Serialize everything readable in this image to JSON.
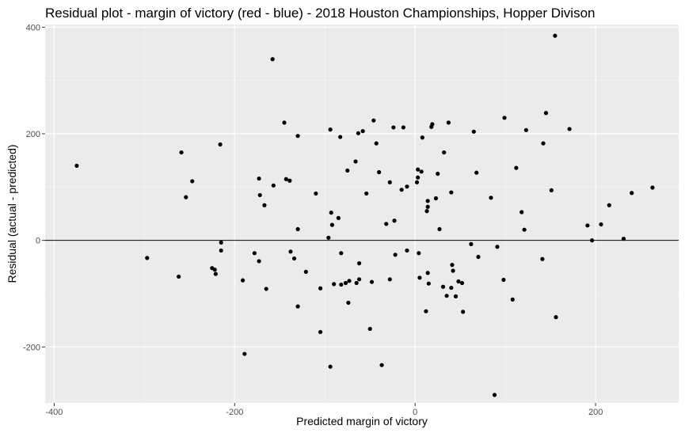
{
  "chart_data": {
    "type": "scatter",
    "title": "Residual plot - margin of victory (red - blue) - 2018 Houston Championships, Hopper Divison",
    "xlabel": "Predicted margin of victory",
    "ylabel": "Residual (actual - predicted)",
    "xlim": [
      -410,
      292
    ],
    "ylim": [
      -305,
      405
    ],
    "x_ticks": [
      -400,
      -200,
      0,
      200
    ],
    "y_ticks": [
      -200,
      0,
      200,
      400
    ],
    "x_tick_labels": [
      "-400",
      "-200",
      "0",
      "200"
    ],
    "y_tick_labels": [
      "-200",
      "0",
      "200",
      "400"
    ],
    "reference_line_y": 0,
    "grid": true,
    "legend": "none",
    "colors": {
      "panel_background": "#ebebeb",
      "grid_major": "#ffffff",
      "point": "#000000",
      "reference_line": "#000000"
    },
    "points": [
      {
        "x": -375,
        "y": 140
      },
      {
        "x": -297,
        "y": -33
      },
      {
        "x": -262,
        "y": -68
      },
      {
        "x": -259,
        "y": 165
      },
      {
        "x": -254,
        "y": 81
      },
      {
        "x": -247,
        "y": 111
      },
      {
        "x": -225,
        "y": -52
      },
      {
        "x": -222,
        "y": -55
      },
      {
        "x": -221,
        "y": -63
      },
      {
        "x": -216,
        "y": 180
      },
      {
        "x": -215,
        "y": -4
      },
      {
        "x": -215,
        "y": -19
      },
      {
        "x": -191,
        "y": -75
      },
      {
        "x": -189,
        "y": -213
      },
      {
        "x": -178,
        "y": -24
      },
      {
        "x": -173,
        "y": 116
      },
      {
        "x": -172,
        "y": 85
      },
      {
        "x": -173,
        "y": -39
      },
      {
        "x": -167,
        "y": 66
      },
      {
        "x": -165,
        "y": -91
      },
      {
        "x": -158,
        "y": 340
      },
      {
        "x": -157,
        "y": 103
      },
      {
        "x": -145,
        "y": 221
      },
      {
        "x": -143,
        "y": 115
      },
      {
        "x": -139,
        "y": 112
      },
      {
        "x": -138,
        "y": -21
      },
      {
        "x": -134,
        "y": -34
      },
      {
        "x": -130,
        "y": 196
      },
      {
        "x": -130,
        "y": 21
      },
      {
        "x": -130,
        "y": -124
      },
      {
        "x": -121,
        "y": -59
      },
      {
        "x": -110,
        "y": 88
      },
      {
        "x": -105,
        "y": -172
      },
      {
        "x": -105,
        "y": -90
      },
      {
        "x": -96,
        "y": 5
      },
      {
        "x": -94,
        "y": 208
      },
      {
        "x": -94,
        "y": -237
      },
      {
        "x": -93,
        "y": 52
      },
      {
        "x": -92,
        "y": 29
      },
      {
        "x": -90,
        "y": -82
      },
      {
        "x": -85,
        "y": 42
      },
      {
        "x": -83,
        "y": 194
      },
      {
        "x": -82,
        "y": -83
      },
      {
        "x": -82,
        "y": -24
      },
      {
        "x": -77,
        "y": -80
      },
      {
        "x": -75,
        "y": 131
      },
      {
        "x": -74,
        "y": -117
      },
      {
        "x": -73,
        "y": -76
      },
      {
        "x": -66,
        "y": 148
      },
      {
        "x": -65,
        "y": -80
      },
      {
        "x": -63,
        "y": 201
      },
      {
        "x": -62,
        "y": -43
      },
      {
        "x": -62,
        "y": -73
      },
      {
        "x": -58,
        "y": 205
      },
      {
        "x": -54,
        "y": 88
      },
      {
        "x": -50,
        "y": -166
      },
      {
        "x": -48,
        "y": -78
      },
      {
        "x": -46,
        "y": 225
      },
      {
        "x": -43,
        "y": 182
      },
      {
        "x": -40,
        "y": 128
      },
      {
        "x": -37,
        "y": -234
      },
      {
        "x": -32,
        "y": 31
      },
      {
        "x": -28,
        "y": 109
      },
      {
        "x": -28,
        "y": -73
      },
      {
        "x": -24,
        "y": 212
      },
      {
        "x": -23,
        "y": 37
      },
      {
        "x": -22,
        "y": -27
      },
      {
        "x": -13,
        "y": 212
      },
      {
        "x": -15,
        "y": 95
      },
      {
        "x": -9,
        "y": 101
      },
      {
        "x": -9,
        "y": -19
      },
      {
        "x": 2,
        "y": 109
      },
      {
        "x": 3,
        "y": 133
      },
      {
        "x": 3,
        "y": 118
      },
      {
        "x": 4,
        "y": -24
      },
      {
        "x": 5,
        "y": -70
      },
      {
        "x": 7,
        "y": 129
      },
      {
        "x": 8,
        "y": 193
      },
      {
        "x": 12,
        "y": -133
      },
      {
        "x": 13,
        "y": 55
      },
      {
        "x": 14,
        "y": 63
      },
      {
        "x": 14,
        "y": 74
      },
      {
        "x": 14,
        "y": -61
      },
      {
        "x": 15,
        "y": -81
      },
      {
        "x": 18,
        "y": 213
      },
      {
        "x": 19,
        "y": 218
      },
      {
        "x": 23,
        "y": 79
      },
      {
        "x": 25,
        "y": 125
      },
      {
        "x": 27,
        "y": 21
      },
      {
        "x": 31,
        "y": -87
      },
      {
        "x": 32,
        "y": 165
      },
      {
        "x": 35,
        "y": -104
      },
      {
        "x": 37,
        "y": 221
      },
      {
        "x": 40,
        "y": 90
      },
      {
        "x": 40,
        "y": -89
      },
      {
        "x": 41,
        "y": -46
      },
      {
        "x": 42,
        "y": -57
      },
      {
        "x": 45,
        "y": -105
      },
      {
        "x": 48,
        "y": -77
      },
      {
        "x": 52,
        "y": -80
      },
      {
        "x": 53,
        "y": -134
      },
      {
        "x": 62,
        "y": -7
      },
      {
        "x": 65,
        "y": 204
      },
      {
        "x": 68,
        "y": 127
      },
      {
        "x": 70,
        "y": -31
      },
      {
        "x": 84,
        "y": 80
      },
      {
        "x": 88,
        "y": -290
      },
      {
        "x": 91,
        "y": -12
      },
      {
        "x": 98,
        "y": -74
      },
      {
        "x": 99,
        "y": 230
      },
      {
        "x": 108,
        "y": -111
      },
      {
        "x": 112,
        "y": 136
      },
      {
        "x": 118,
        "y": 53
      },
      {
        "x": 121,
        "y": 20
      },
      {
        "x": 123,
        "y": 207
      },
      {
        "x": 141,
        "y": -35
      },
      {
        "x": 142,
        "y": 182
      },
      {
        "x": 145,
        "y": 239
      },
      {
        "x": 151,
        "y": 94
      },
      {
        "x": 155,
        "y": 384
      },
      {
        "x": 156,
        "y": -144
      },
      {
        "x": 171,
        "y": 209
      },
      {
        "x": 191,
        "y": 28
      },
      {
        "x": 196,
        "y": 0
      },
      {
        "x": 206,
        "y": 30
      },
      {
        "x": 215,
        "y": 66
      },
      {
        "x": 231,
        "y": 3
      },
      {
        "x": 240,
        "y": 89
      },
      {
        "x": 263,
        "y": 99
      }
    ]
  }
}
